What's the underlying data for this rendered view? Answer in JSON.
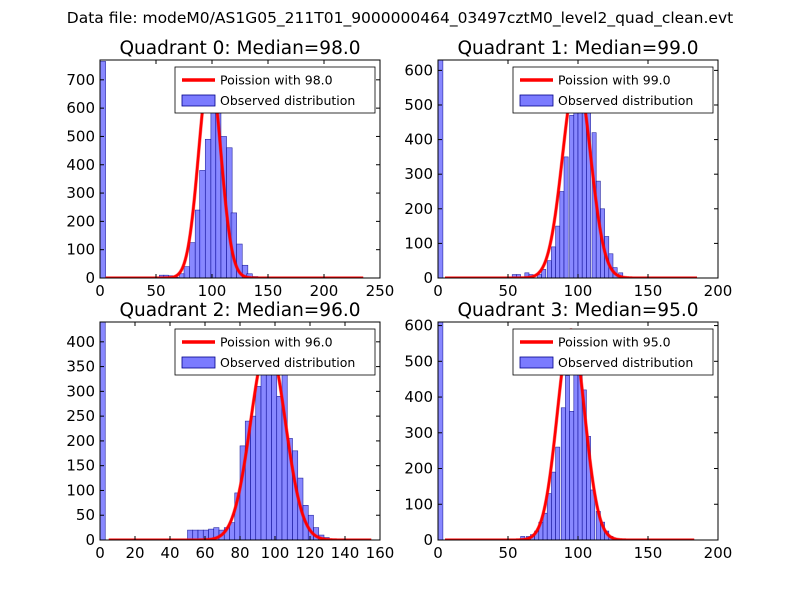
{
  "suptitle": "Data file: modeM0/AS1G05_211T01_9000000464_03497cztM0_level2_quad_clean.evt",
  "colors": {
    "poisson": "#ff0000",
    "bar_fill": "#7b7bff",
    "bar_edge": "#00008b"
  },
  "chart_data": [
    {
      "type": "bar",
      "title": "Quadrant 0: Median=98.0",
      "median": 98.0,
      "xlim": [
        0,
        250
      ],
      "ylim": [
        0,
        770
      ],
      "xticks": [
        0,
        50,
        100,
        150,
        200,
        250
      ],
      "yticks": [
        0,
        100,
        200,
        300,
        400,
        500,
        600,
        700
      ],
      "legend": {
        "location": "upper-right",
        "poisson_label": "Poission with 98.0",
        "observed_label": "Observed distribution"
      },
      "bin_width": 4.7,
      "bins": [
        [
          0,
          5,
          765
        ],
        [
          53,
          4,
          10
        ],
        [
          57,
          4,
          10
        ],
        [
          61,
          4,
          8
        ],
        [
          66,
          4,
          3
        ],
        [
          71,
          5,
          15
        ],
        [
          75,
          5,
          40
        ],
        [
          80,
          5,
          125
        ],
        [
          85,
          5,
          240
        ],
        [
          89,
          5,
          380
        ],
        [
          94,
          5,
          490
        ],
        [
          99,
          5,
          700
        ],
        [
          103,
          5,
          590
        ],
        [
          108,
          5,
          500
        ],
        [
          113,
          5,
          460
        ],
        [
          117,
          5,
          230
        ],
        [
          122,
          5,
          120
        ],
        [
          127,
          5,
          45
        ],
        [
          131,
          5,
          15
        ],
        [
          136,
          5,
          5
        ]
      ],
      "poisson_x": [
        5,
        40,
        70,
        75,
        80,
        85,
        90,
        95,
        98,
        100,
        105,
        110,
        115,
        120,
        125,
        130,
        140,
        200,
        235
      ]
    },
    {
      "type": "bar",
      "title": "Quadrant 1: Median=99.0",
      "median": 99.0,
      "xlim": [
        0,
        200
      ],
      "ylim": [
        0,
        630
      ],
      "xticks": [
        0,
        50,
        100,
        150,
        200
      ],
      "yticks": [
        0,
        100,
        200,
        300,
        400,
        500,
        600
      ],
      "legend": {
        "location": "upper-right",
        "poisson_label": "Poission with 99.0",
        "observed_label": "Observed distribution"
      },
      "bins": [
        [
          0,
          3.5,
          630
        ],
        [
          53,
          3,
          10
        ],
        [
          56,
          3,
          10
        ],
        [
          62,
          3,
          15
        ],
        [
          65,
          3,
          10
        ],
        [
          71,
          3,
          10
        ],
        [
          74,
          3,
          25
        ],
        [
          78,
          3,
          50
        ],
        [
          81,
          3,
          90
        ],
        [
          84,
          3,
          150
        ],
        [
          87,
          3,
          250
        ],
        [
          90,
          3,
          350
        ],
        [
          94,
          3,
          470
        ],
        [
          97,
          3,
          560
        ],
        [
          100,
          3,
          550
        ],
        [
          103,
          3,
          500
        ],
        [
          106,
          3,
          540
        ],
        [
          110,
          3,
          420
        ],
        [
          113,
          3,
          280
        ],
        [
          116,
          3,
          200
        ],
        [
          119,
          3,
          120
        ],
        [
          122,
          3,
          70
        ],
        [
          125,
          3,
          30
        ],
        [
          129,
          3,
          15
        ]
      ],
      "poisson_x": [
        5,
        40,
        70,
        75,
        80,
        85,
        90,
        95,
        99,
        103,
        108,
        113,
        118,
        123,
        128,
        135,
        150,
        185
      ]
    },
    {
      "type": "bar",
      "title": "Quadrant 2: Median=96.0",
      "median": 96.0,
      "xlim": [
        0,
        160
      ],
      "ylim": [
        0,
        440
      ],
      "xticks": [
        0,
        20,
        40,
        60,
        80,
        100,
        120,
        140,
        160
      ],
      "yticks": [
        0,
        50,
        100,
        150,
        200,
        250,
        300,
        350,
        400
      ],
      "legend": {
        "location": "upper-right",
        "poisson_label": "Poission with 96.0",
        "observed_label": "Observed distribution"
      },
      "bins": [
        [
          0,
          3,
          440
        ],
        [
          50,
          3,
          20
        ],
        [
          53,
          3,
          20
        ],
        [
          56,
          3,
          20
        ],
        [
          59,
          3,
          20
        ],
        [
          62,
          3,
          22
        ],
        [
          65,
          3,
          25
        ],
        [
          68,
          3,
          20
        ],
        [
          71,
          3,
          25
        ],
        [
          74,
          3,
          35
        ],
        [
          77,
          3,
          95
        ],
        [
          80,
          3,
          190
        ],
        [
          83,
          3,
          240
        ],
        [
          86,
          3,
          250
        ],
        [
          89,
          3,
          310
        ],
        [
          92,
          3,
          350
        ],
        [
          95,
          3,
          355
        ],
        [
          98,
          3,
          340
        ],
        [
          101,
          3,
          290
        ],
        [
          104,
          3,
          380
        ],
        [
          107,
          3,
          205
        ],
        [
          110,
          3,
          180
        ],
        [
          113,
          3,
          125
        ],
        [
          116,
          3,
          70
        ],
        [
          119,
          3,
          50
        ],
        [
          122,
          3,
          25
        ],
        [
          125,
          3,
          10
        ],
        [
          128,
          3,
          5
        ]
      ],
      "poisson_x": [
        5,
        30,
        60,
        65,
        70,
        75,
        80,
        85,
        90,
        96,
        100,
        105,
        110,
        115,
        120,
        125,
        130,
        155
      ]
    },
    {
      "type": "bar",
      "title": "Quadrant 3: Median=95.0",
      "median": 95.0,
      "xlim": [
        0,
        200
      ],
      "ylim": [
        0,
        610
      ],
      "xticks": [
        0,
        50,
        100,
        150,
        200
      ],
      "yticks": [
        0,
        100,
        200,
        300,
        400,
        500,
        600
      ],
      "legend": {
        "location": "upper-right",
        "poisson_label": "Poission with 95.0",
        "observed_label": "Observed distribution"
      },
      "bins": [
        [
          0,
          3.5,
          610
        ],
        [
          59,
          3,
          10
        ],
        [
          63,
          3,
          10
        ],
        [
          66,
          3,
          15
        ],
        [
          69,
          3,
          25
        ],
        [
          72,
          3,
          50
        ],
        [
          75,
          3,
          75
        ],
        [
          78,
          3,
          130
        ],
        [
          81,
          3,
          190
        ],
        [
          84,
          3,
          260
        ],
        [
          88,
          3,
          370
        ],
        [
          91,
          3,
          460
        ],
        [
          94,
          3,
          360
        ],
        [
          97,
          3,
          550
        ],
        [
          100,
          3,
          560
        ],
        [
          103,
          3,
          420
        ],
        [
          106,
          3,
          290
        ],
        [
          109,
          3,
          140
        ],
        [
          113,
          3,
          80
        ],
        [
          116,
          3,
          50
        ],
        [
          119,
          3,
          25
        ],
        [
          122,
          3,
          10
        ],
        [
          125,
          3,
          5
        ]
      ],
      "poisson_x": [
        5,
        40,
        65,
        70,
        75,
        80,
        85,
        90,
        95,
        100,
        105,
        110,
        115,
        120,
        125,
        135,
        150,
        183
      ]
    }
  ]
}
